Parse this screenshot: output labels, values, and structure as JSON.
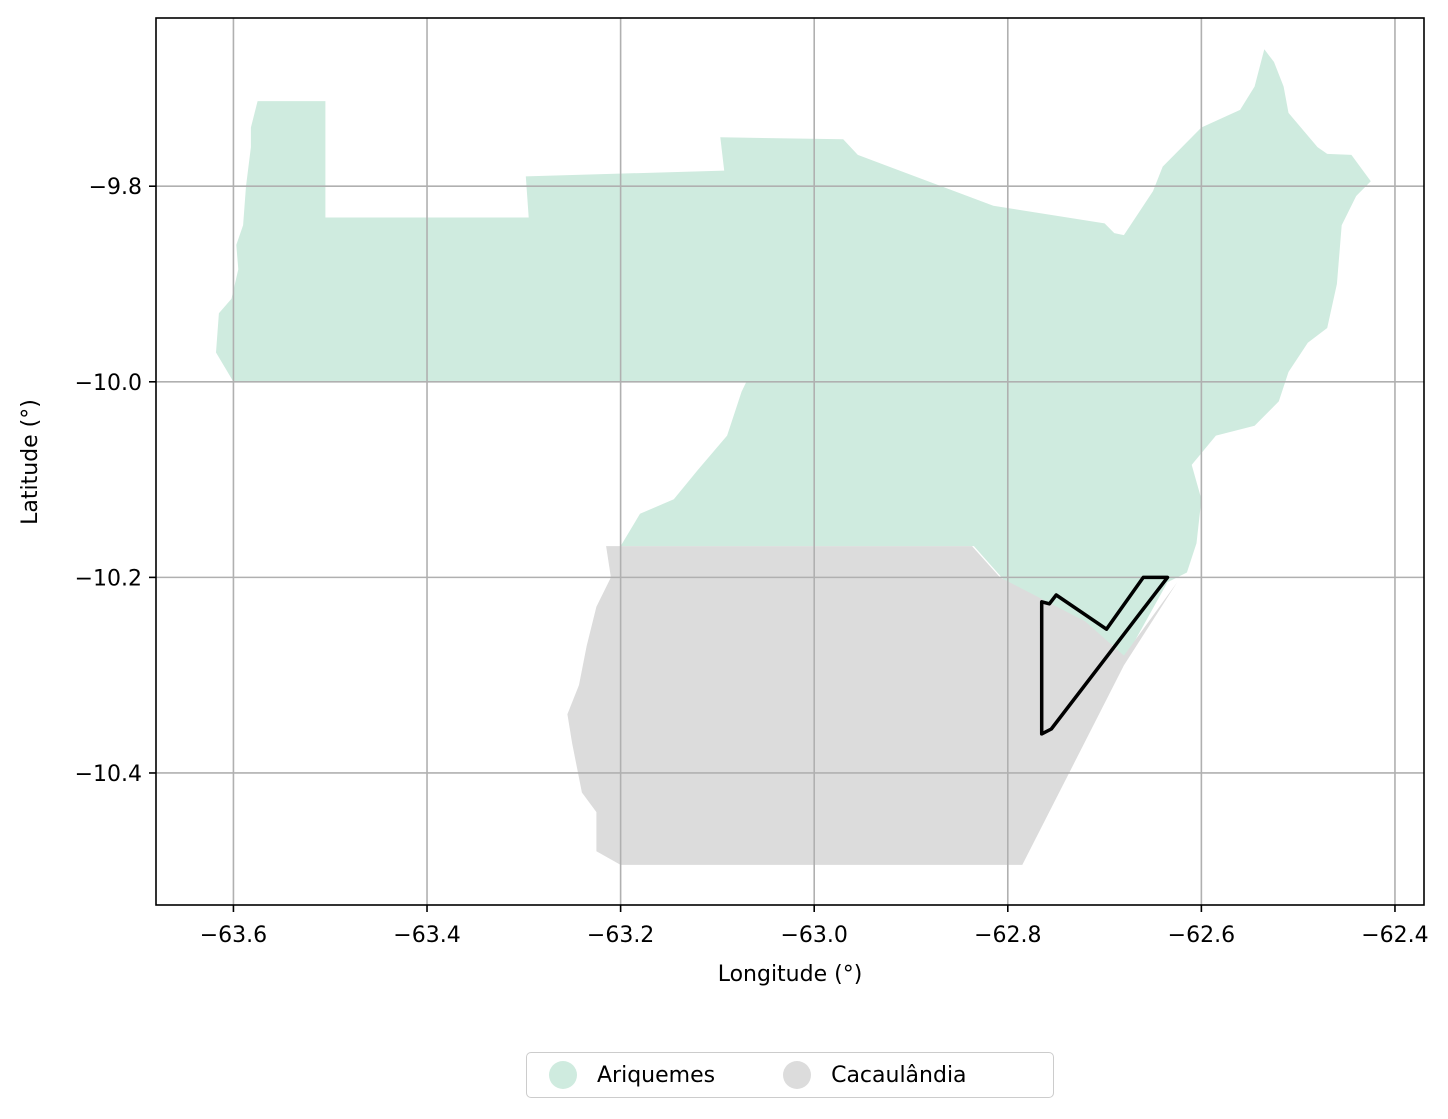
{
  "chart_data": {
    "type": "map",
    "xlabel": "Longitude (°)",
    "ylabel": "Latitude (°)",
    "xlim": [
      -63.68,
      -62.37
    ],
    "ylim": [
      -10.535,
      -9.628
    ],
    "xticks": [
      -63.6,
      -63.4,
      -63.2,
      -63.0,
      -62.8,
      -62.6,
      -62.4
    ],
    "yticks": [
      -9.8,
      -10.0,
      -10.2,
      -10.4
    ],
    "xtick_labels": [
      "−63.6",
      "−63.4",
      "−63.2",
      "−63.0",
      "−62.8",
      "−62.6",
      "−62.4"
    ],
    "ytick_labels": [
      "−9.8",
      "−10.0",
      "−10.2",
      "−10.4"
    ],
    "grid": true,
    "legend_position": "bottom-center",
    "regions": [
      {
        "name": "Ariquemes",
        "color": "#cfebdf",
        "polygon": [
          [
            -63.575,
            -9.713
          ],
          [
            -63.505,
            -9.713
          ],
          [
            -63.505,
            -9.832
          ],
          [
            -63.295,
            -9.832
          ],
          [
            -63.298,
            -9.79
          ],
          [
            -63.093,
            -9.784
          ],
          [
            -63.097,
            -9.75
          ],
          [
            -62.97,
            -9.752
          ],
          [
            -62.955,
            -9.768
          ],
          [
            -62.815,
            -9.82
          ],
          [
            -62.7,
            -9.838
          ],
          [
            -62.69,
            -9.848
          ],
          [
            -62.68,
            -9.85
          ],
          [
            -62.65,
            -9.805
          ],
          [
            -62.64,
            -9.78
          ],
          [
            -62.6,
            -9.74
          ],
          [
            -62.56,
            -9.722
          ],
          [
            -62.545,
            -9.698
          ],
          [
            -62.535,
            -9.66
          ],
          [
            -62.525,
            -9.673
          ],
          [
            -62.515,
            -9.698
          ],
          [
            -62.51,
            -9.725
          ],
          [
            -62.48,
            -9.76
          ],
          [
            -62.47,
            -9.767
          ],
          [
            -62.445,
            -9.768
          ],
          [
            -62.425,
            -9.795
          ],
          [
            -62.44,
            -9.81
          ],
          [
            -62.455,
            -9.84
          ],
          [
            -62.46,
            -9.9
          ],
          [
            -62.47,
            -9.945
          ],
          [
            -62.49,
            -9.96
          ],
          [
            -62.51,
            -9.99
          ],
          [
            -62.52,
            -10.02
          ],
          [
            -62.545,
            -10.045
          ],
          [
            -62.585,
            -10.055
          ],
          [
            -62.61,
            -10.085
          ],
          [
            -62.6,
            -10.12
          ],
          [
            -62.605,
            -10.165
          ],
          [
            -62.615,
            -10.195
          ],
          [
            -62.635,
            -10.205
          ],
          [
            -62.68,
            -10.285
          ],
          [
            -62.69,
            -10.27
          ],
          [
            -62.74,
            -10.255
          ],
          [
            -62.775,
            -10.235
          ],
          [
            -62.835,
            -10.168
          ],
          [
            -63.2,
            -10.168
          ],
          [
            -63.18,
            -10.135
          ],
          [
            -63.145,
            -10.12
          ],
          [
            -63.12,
            -10.09
          ],
          [
            -63.09,
            -10.055
          ],
          [
            -63.075,
            -10.01
          ],
          [
            -63.07,
            -10.0
          ],
          [
            -63.6,
            -10.0
          ],
          [
            -63.618,
            -9.97
          ],
          [
            -63.615,
            -9.93
          ],
          [
            -63.602,
            -9.915
          ],
          [
            -63.595,
            -9.885
          ],
          [
            -63.597,
            -9.86
          ],
          [
            -63.59,
            -9.84
          ],
          [
            -63.587,
            -9.8
          ],
          [
            -63.582,
            -9.76
          ],
          [
            -63.582,
            -9.74
          ]
        ]
      },
      {
        "name": "Cacaulândia",
        "color": "#dcdcdc",
        "polygon": [
          [
            -63.215,
            -10.168
          ],
          [
            -62.837,
            -10.168
          ],
          [
            -62.808,
            -10.2
          ],
          [
            -62.72,
            -10.245
          ],
          [
            -62.68,
            -10.28
          ],
          [
            -62.625,
            -10.205
          ],
          [
            -62.68,
            -10.29
          ],
          [
            -62.785,
            -10.494
          ],
          [
            -63.2,
            -10.494
          ],
          [
            -63.225,
            -10.48
          ],
          [
            -63.225,
            -10.44
          ],
          [
            -63.24,
            -10.42
          ],
          [
            -63.25,
            -10.37
          ],
          [
            -63.255,
            -10.34
          ],
          [
            -63.243,
            -10.31
          ],
          [
            -63.235,
            -10.27
          ],
          [
            -63.225,
            -10.23
          ],
          [
            -63.21,
            -10.2
          ]
        ]
      }
    ],
    "outline": {
      "color": "#000000",
      "polygon": [
        [
          -62.765,
          -10.225
        ],
        [
          -62.765,
          -10.36
        ],
        [
          -62.755,
          -10.355
        ],
        [
          -62.635,
          -10.2
        ],
        [
          -62.66,
          -10.2
        ],
        [
          -62.698,
          -10.253
        ],
        [
          -62.75,
          -10.218
        ],
        [
          -62.757,
          -10.227
        ]
      ]
    }
  },
  "legend": {
    "items": [
      {
        "label": "Ariquemes",
        "color": "#cfebdf"
      },
      {
        "label": "Cacaulândia",
        "color": "#dcdcdc"
      }
    ]
  }
}
